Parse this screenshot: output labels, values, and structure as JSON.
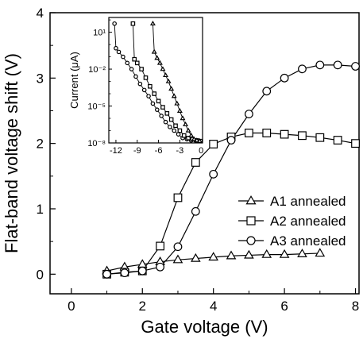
{
  "chart_data": [
    {
      "type": "line",
      "xlabel": "Gate voltage (V)",
      "ylabel": "Flat-band voltage shift (V)",
      "xlim": [
        -0.6,
        8.1
      ],
      "ylim": [
        -0.3,
        4.0
      ],
      "x_ticks": [
        "0",
        "2",
        "4",
        "6",
        "8"
      ],
      "y_ticks": [
        "0",
        "1",
        "2",
        "3",
        "4"
      ],
      "legend_position": "right-middle",
      "series": [
        {
          "name": "A1 annealed",
          "marker": "triangle",
          "x": [
            1.0,
            1.5,
            2.0,
            2.5,
            3.0,
            3.5,
            4.0,
            4.5,
            5.0,
            5.5,
            6.0,
            6.5,
            7.0
          ],
          "y": [
            0.05,
            0.11,
            0.15,
            0.19,
            0.22,
            0.24,
            0.26,
            0.28,
            0.29,
            0.3,
            0.3,
            0.31,
            0.32
          ]
        },
        {
          "name": "A2 annealed",
          "marker": "square",
          "x": [
            1.0,
            1.5,
            2.0,
            2.5,
            3.0,
            3.5,
            4.0,
            4.5,
            5.0,
            5.5,
            6.0,
            6.5,
            7.0,
            7.5,
            8.0
          ],
          "y": [
            0.0,
            0.03,
            0.05,
            0.43,
            1.17,
            1.71,
            1.99,
            2.1,
            2.16,
            2.16,
            2.14,
            2.12,
            2.09,
            2.05,
            2.0
          ]
        },
        {
          "name": "A3 annealed",
          "marker": "circle",
          "x": [
            1.0,
            1.5,
            2.0,
            2.5,
            3.0,
            3.5,
            4.0,
            4.5,
            5.0,
            5.5,
            6.0,
            6.5,
            7.0,
            7.5,
            8.0
          ],
          "y": [
            0.0,
            0.02,
            0.05,
            0.11,
            0.42,
            0.96,
            1.53,
            2.05,
            2.45,
            2.8,
            3.0,
            3.14,
            3.2,
            3.2,
            3.18
          ]
        }
      ]
    },
    {
      "type": "line",
      "xlabel": "",
      "ylabel": "Current (μA)",
      "xlim": [
        -13,
        0.2
      ],
      "log_y": true,
      "ylim_log10": [
        -8,
        2.2
      ],
      "x_ticks": [
        "-12",
        "-9",
        "-6",
        "-3",
        "0"
      ],
      "y_ticks": [
        "10¹",
        "10⁻²",
        "10⁻⁵",
        "10⁻⁸"
      ],
      "series": [
        {
          "marker": "circle",
          "x": [
            -12.2,
            -12.0,
            -11.6,
            -11.0,
            -10.4,
            -9.8,
            -9.2,
            -8.6,
            -8.0,
            -7.4,
            -6.8,
            -6.2,
            -5.6,
            -5.0,
            -4.4,
            -3.8,
            -3.2,
            -2.6,
            -2.0,
            -1.4,
            -0.8,
            -0.2
          ],
          "log10_y": [
            1.7,
            -0.3,
            -0.6,
            -1.0,
            -1.5,
            -2.0,
            -2.6,
            -3.2,
            -3.7,
            -4.2,
            -4.8,
            -5.3,
            -5.8,
            -6.3,
            -6.7,
            -7.0,
            -7.3,
            -7.6,
            -7.7,
            -7.8,
            -7.8,
            -7.85
          ]
        },
        {
          "marker": "square",
          "x": [
            -9.6,
            -9.4,
            -9.0,
            -8.4,
            -7.8,
            -7.2,
            -6.6,
            -6.0,
            -5.4,
            -4.8,
            -4.2,
            -3.6,
            -3.0,
            -2.4,
            -1.8,
            -1.2,
            -0.6,
            -0.1
          ],
          "log10_y": [
            1.7,
            -1.2,
            -1.5,
            -2.0,
            -2.7,
            -3.4,
            -4.0,
            -4.6,
            -5.1,
            -5.6,
            -6.1,
            -6.6,
            -7.0,
            -7.4,
            -7.6,
            -7.7,
            -7.8,
            -7.85
          ]
        },
        {
          "marker": "triangle",
          "x": [
            -6.8,
            -6.6,
            -6.2,
            -5.8,
            -5.4,
            -5.0,
            -4.6,
            -4.2,
            -3.8,
            -3.4,
            -3.0,
            -2.6,
            -2.2,
            -1.8,
            -1.4,
            -1.0,
            -0.6,
            -0.2
          ],
          "log10_y": [
            1.7,
            -0.6,
            -1.1,
            -1.5,
            -2.0,
            -2.5,
            -3.0,
            -3.6,
            -4.2,
            -4.8,
            -5.4,
            -6.0,
            -6.5,
            -7.0,
            -7.4,
            -7.7,
            -7.8,
            -7.85
          ]
        }
      ]
    }
  ]
}
